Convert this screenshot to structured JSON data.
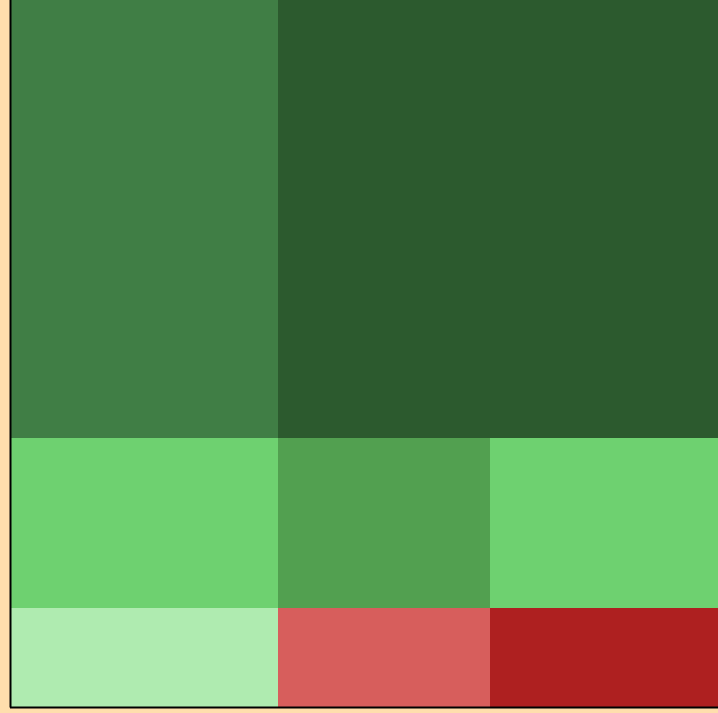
{
  "chart_data": {
    "type": "heatmap",
    "title": "",
    "xlabel": "",
    "ylabel": "",
    "legend": "none",
    "grid": false,
    "background_color": "#ffdead",
    "axis_color": "#000000",
    "cells": [
      {
        "id": "top-left",
        "color": "#407e45"
      },
      {
        "id": "top-right",
        "color": "#2c5a2e"
      },
      {
        "id": "middle-left",
        "color": "#6ed170"
      },
      {
        "id": "middle-center",
        "color": "#52a050"
      },
      {
        "id": "middle-right",
        "color": "#6ed170"
      },
      {
        "id": "bottom-left",
        "color": "#afebb0"
      },
      {
        "id": "bottom-center",
        "color": "#d75e5c"
      },
      {
        "id": "bottom-right",
        "color": "#ae2020"
      }
    ]
  }
}
